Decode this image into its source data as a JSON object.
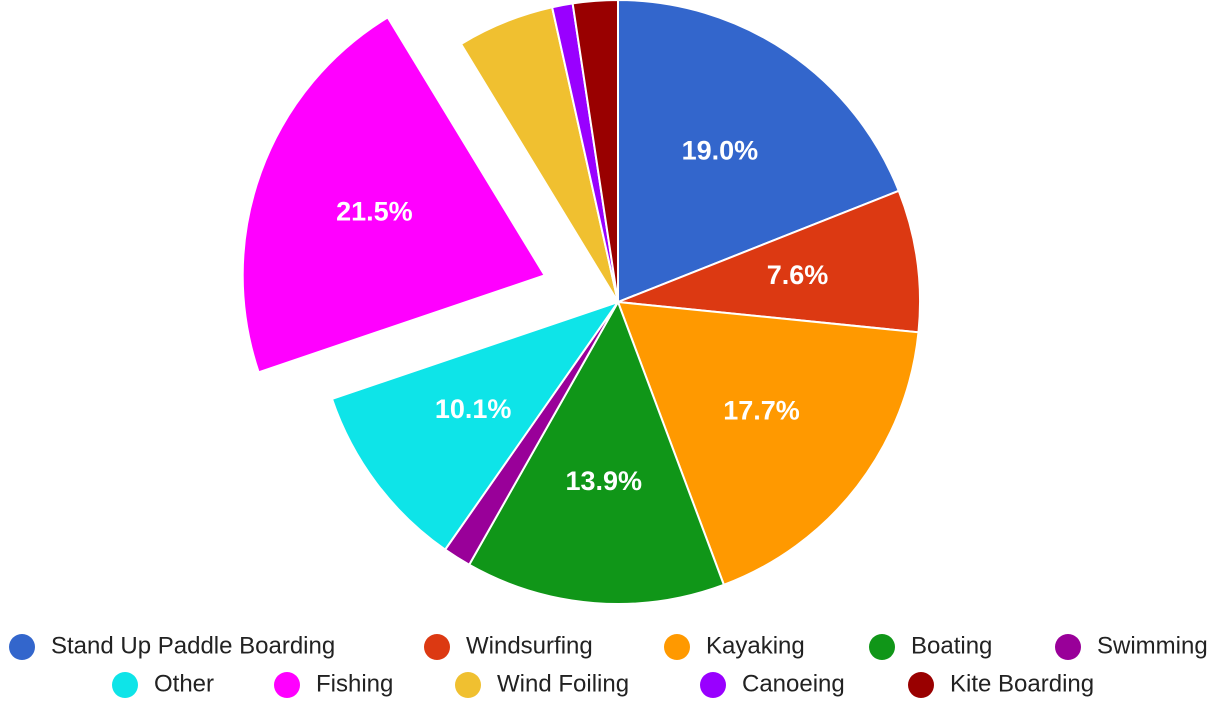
{
  "chart_data": {
    "type": "pie",
    "categories": [
      "Stand Up Paddle Boarding",
      "Windsurfing",
      "Kayaking",
      "Boating",
      "Swimming",
      "Other",
      "Fishing",
      "Wind Foiling",
      "Canoeing",
      "Kite Boarding"
    ],
    "values": [
      19.0,
      7.6,
      17.7,
      13.9,
      1.5,
      10.1,
      21.5,
      5.2,
      1.1,
      2.4
    ],
    "value_labels": [
      "19.0%",
      "7.6%",
      "17.7%",
      "13.9%",
      null,
      "10.1%",
      "21.5%",
      null,
      null,
      null
    ],
    "colors": [
      "#3366cc",
      "#dc3912",
      "#ff9900",
      "#109618",
      "#990099",
      "#0ee4e8",
      "#ff00ff",
      "#f0c030",
      "#9900ff",
      "#990000"
    ],
    "explode": "Fishing",
    "legend": "bottom"
  }
}
